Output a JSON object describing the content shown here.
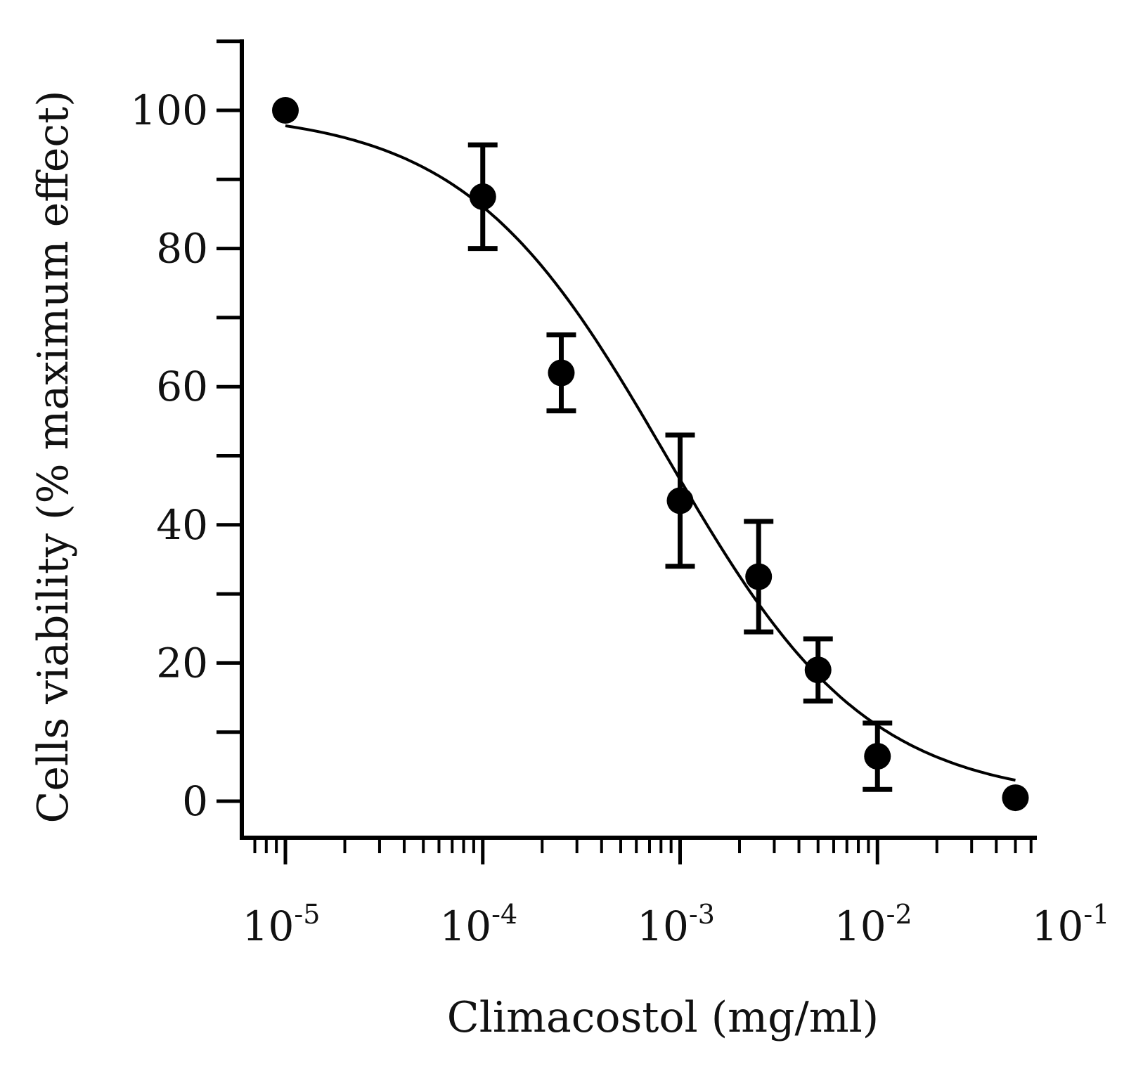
{
  "chart_data": {
    "type": "scatter",
    "title": "",
    "xlabel": "Climacostol (mg/ml)",
    "ylabel": "Cells viability (% maximum effect)",
    "x_scale": "log",
    "xlim": [
      6e-06,
      0.1
    ],
    "ylim": [
      -5,
      110
    ],
    "x_ticks": [
      {
        "base": "10",
        "exp": "-5"
      },
      {
        "base": "10",
        "exp": "-4"
      },
      {
        "base": "10",
        "exp": "-3"
      },
      {
        "base": "10",
        "exp": "-2"
      },
      {
        "base": "10",
        "exp": "-1"
      }
    ],
    "y_ticks": [
      "0",
      "20",
      "40",
      "60",
      "80",
      "100"
    ],
    "series": [
      {
        "name": "Climacostol",
        "marker": "filled-circle",
        "color": "#000000",
        "points": [
          {
            "x": 1e-05,
            "y": 100,
            "err": 0
          },
          {
            "x": 0.0001,
            "y": 87.5,
            "err": 7.5
          },
          {
            "x": 0.00025,
            "y": 62,
            "err": 5.5
          },
          {
            "x": 0.001,
            "y": 43.5,
            "err": 9.5
          },
          {
            "x": 0.0025,
            "y": 32.5,
            "err": 8
          },
          {
            "x": 0.005,
            "y": 19,
            "err": 4.5
          },
          {
            "x": 0.01,
            "y": 6.5,
            "err": 4.8
          },
          {
            "x": 0.05,
            "y": 0.5,
            "err": 0
          }
        ]
      }
    ],
    "fit_curve": {
      "type": "sigmoid",
      "top": 100,
      "bottom": 0,
      "ic50": 0.00085,
      "hill": 0.85,
      "x_range": [
        1e-05,
        0.05
      ]
    }
  }
}
